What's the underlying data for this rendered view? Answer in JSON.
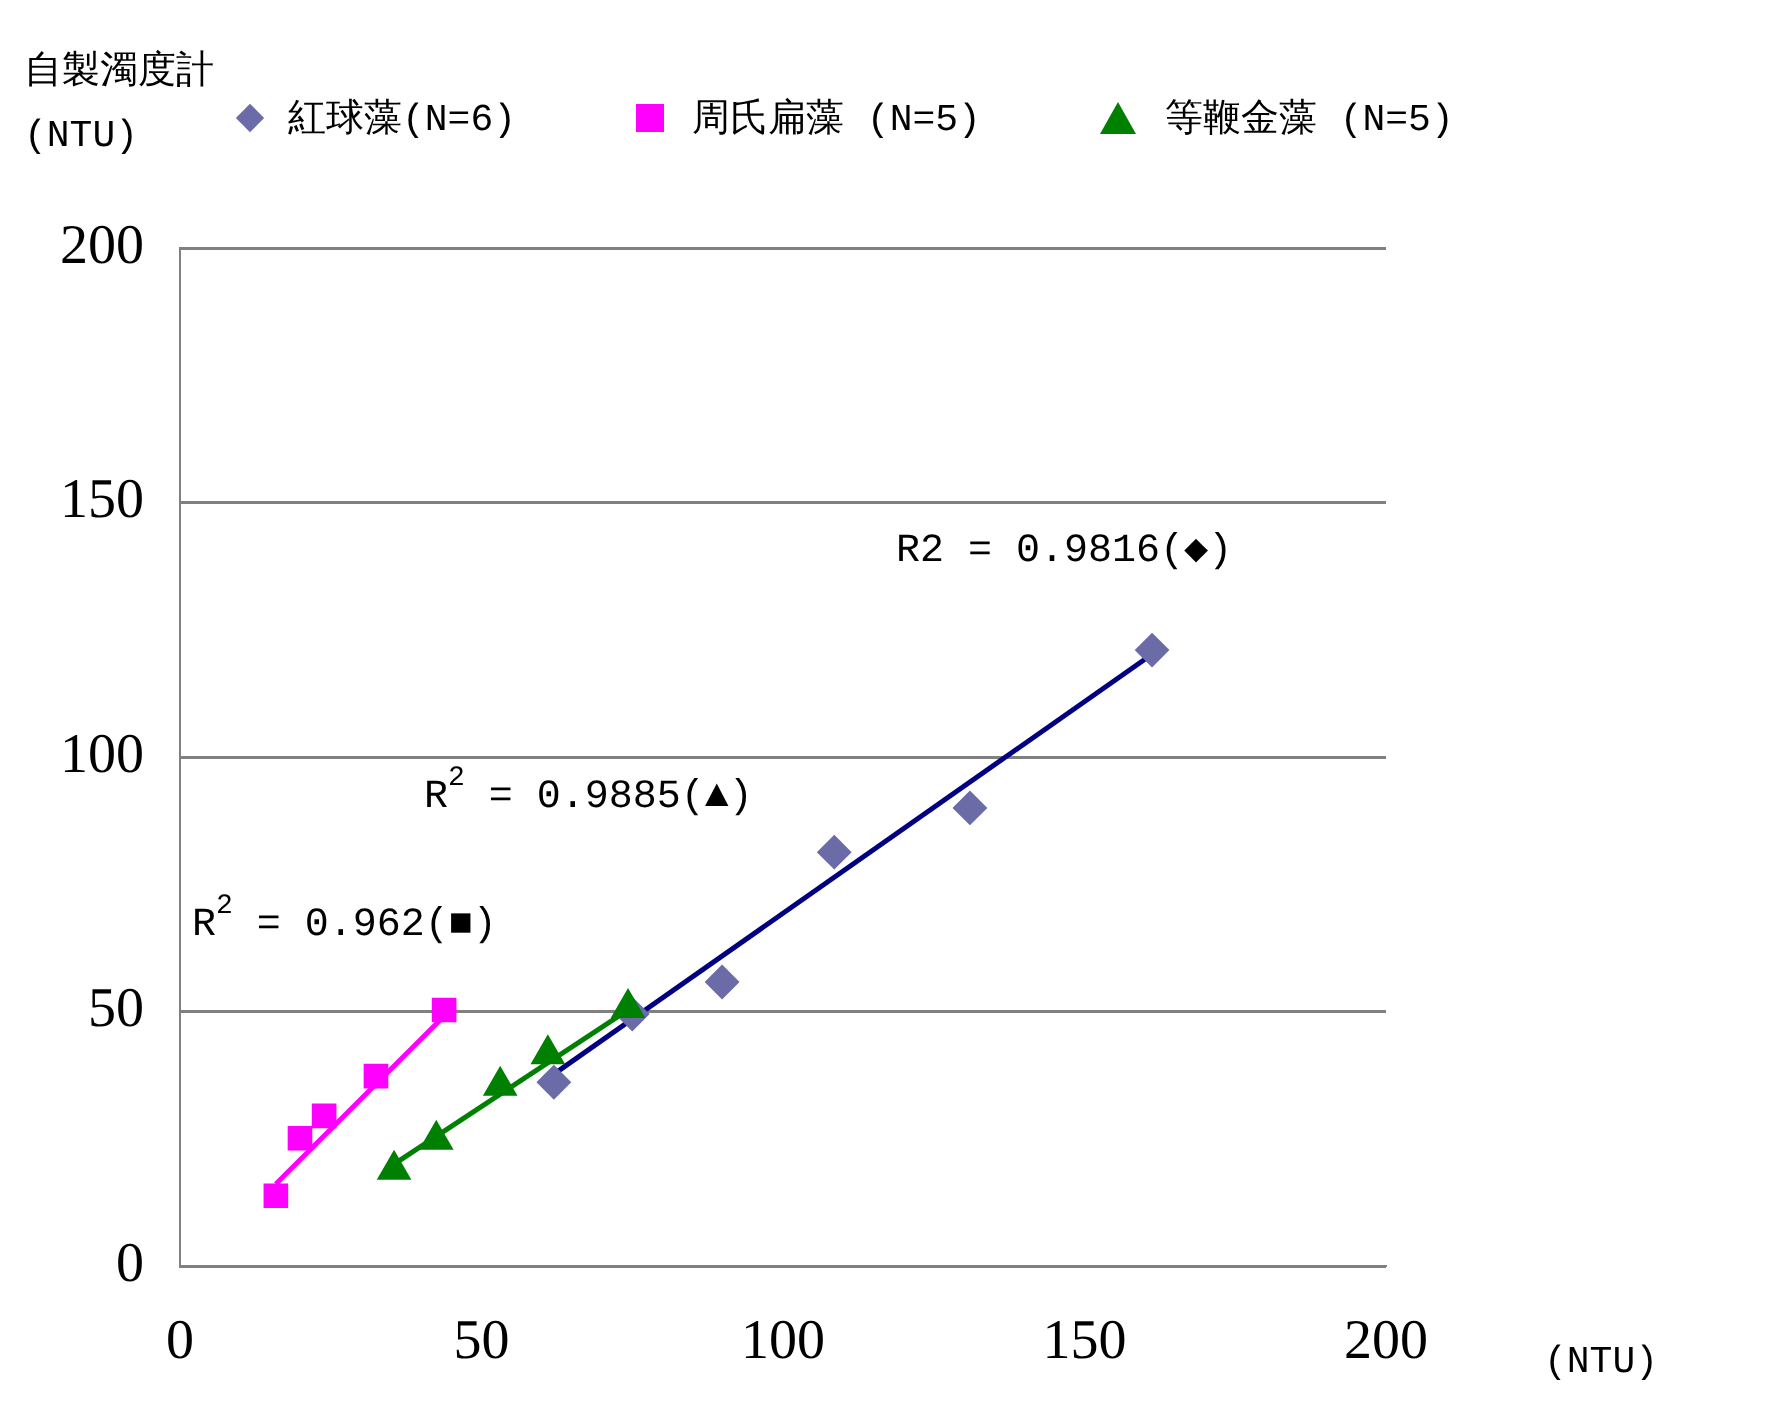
{
  "chart_data": {
    "type": "scatter",
    "ylabel": "自製濁度計\n(NTU)",
    "xlabel": "(NTU)",
    "xlim": [
      0,
      200
    ],
    "xticks": [
      0,
      50,
      100,
      150,
      200
    ],
    "ylim": [
      0,
      200
    ],
    "yticks": [
      0,
      50,
      100,
      150,
      200
    ],
    "grid": "y",
    "legend": "top",
    "series": [
      {
        "name": "紅球藻(N=6)",
        "marker": "diamond",
        "color": "#6b6ba8",
        "x": [
          62.0,
          75.0,
          89.9,
          108.5,
          131.0,
          161.2
        ],
        "values": [
          36.1,
          49.5,
          55.8,
          81.3,
          90.0,
          121.0
        ]
      },
      {
        "name": "周氏扁藻 (N=5)",
        "marker": "square",
        "color": "#ff00ff",
        "x": [
          15.9,
          19.9,
          23.9,
          32.5,
          43.8
        ],
        "values": [
          13.8,
          25.1,
          29.5,
          37.3,
          50.3
        ]
      },
      {
        "name": "等鞭金藻 (N=5)",
        "marker": "triangle",
        "color": "#008000",
        "x": [
          35.5,
          42.5,
          53.1,
          61.0,
          74.3
        ],
        "values": [
          18.9,
          24.8,
          35.4,
          41.6,
          50.7
        ]
      },
      {
        "type": "line",
        "marker": "none",
        "color": "#000080",
        "x": [
          62.0,
          161.2
        ],
        "values": [
          37.7,
          120.2
        ]
      },
      {
        "type": "line",
        "marker": "none",
        "color": "#ff00ff",
        "x": [
          15.9,
          43.8
        ],
        "values": [
          16.1,
          49.1
        ]
      },
      {
        "type": "line",
        "marker": "none",
        "color": "#008000",
        "x": [
          35.5,
          74.3
        ],
        "values": [
          20.0,
          50.3
        ]
      }
    ],
    "annotations": [
      "R2 = 0.9816(◆)",
      "R$^{2}$ = 0.9885(▲)",
      "R$^{2}$ = 0.962(■)"
    ]
  }
}
